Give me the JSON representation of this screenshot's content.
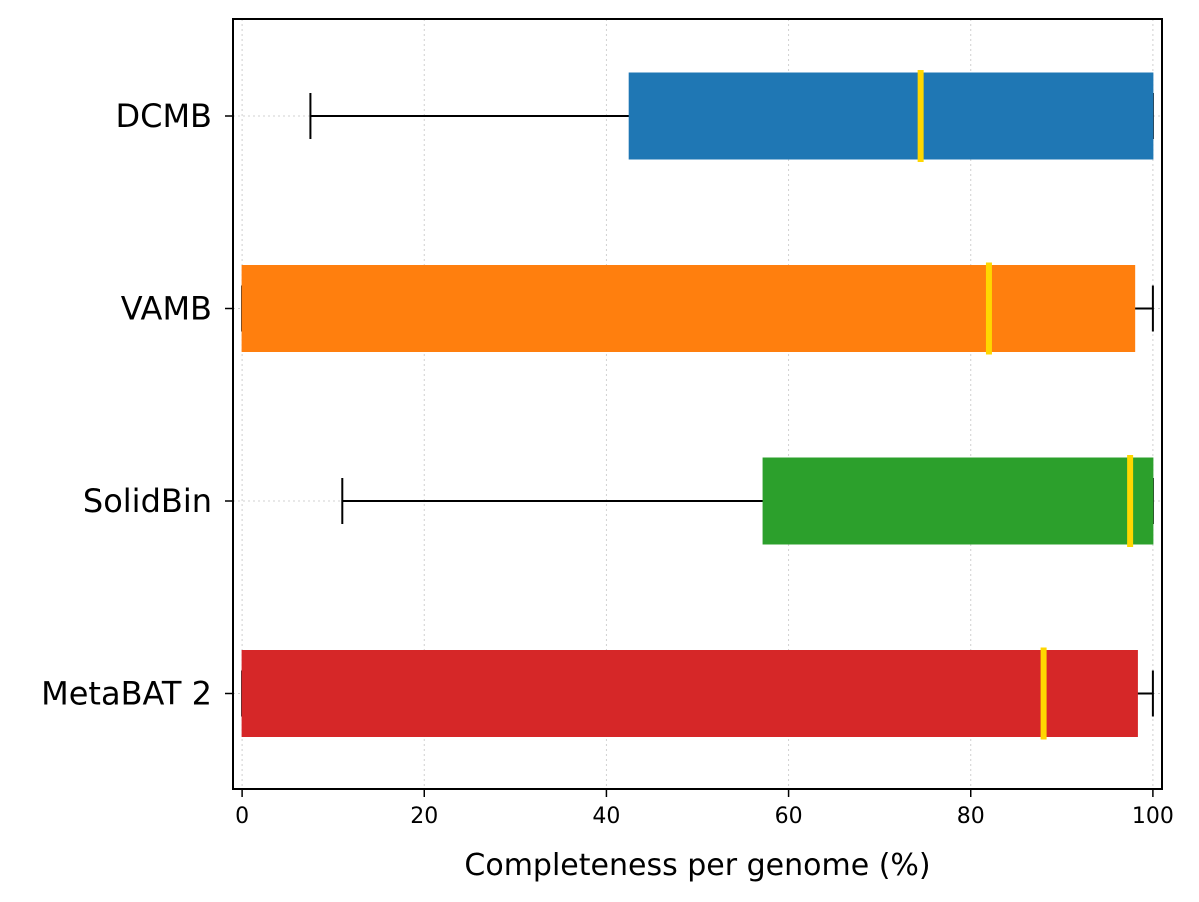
{
  "chart_data": {
    "type": "boxplot",
    "orientation": "horizontal",
    "title": "",
    "xlabel": "Completeness per genome (%)",
    "ylabel": "",
    "xlim": [
      -1,
      101
    ],
    "x_ticks": [
      0,
      20,
      40,
      60,
      80,
      100
    ],
    "grid": "on (dotted, light gray)",
    "categories": [
      "DCMB",
      "VAMB",
      "SolidBin",
      "MetaBAT 2"
    ],
    "series": [
      {
        "category": "DCMB",
        "whisker_low": 7.5,
        "q1": 42.5,
        "median": 74.5,
        "q3": 100,
        "whisker_high": 100,
        "color": "#1f77b4"
      },
      {
        "category": "VAMB",
        "whisker_low": 0,
        "q1": 0,
        "median": 82,
        "q3": 98,
        "whisker_high": 100,
        "color": "#ff7f0e"
      },
      {
        "category": "SolidBin",
        "whisker_low": 11,
        "q1": 57.2,
        "median": 97.5,
        "q3": 100,
        "whisker_high": 100,
        "color": "#2ca02c"
      },
      {
        "category": "MetaBAT 2",
        "whisker_low": 0,
        "q1": 0,
        "median": 88,
        "q3": 98.3,
        "whisker_high": 100,
        "color": "#d62728"
      }
    ],
    "median_color": "#ffd700"
  }
}
